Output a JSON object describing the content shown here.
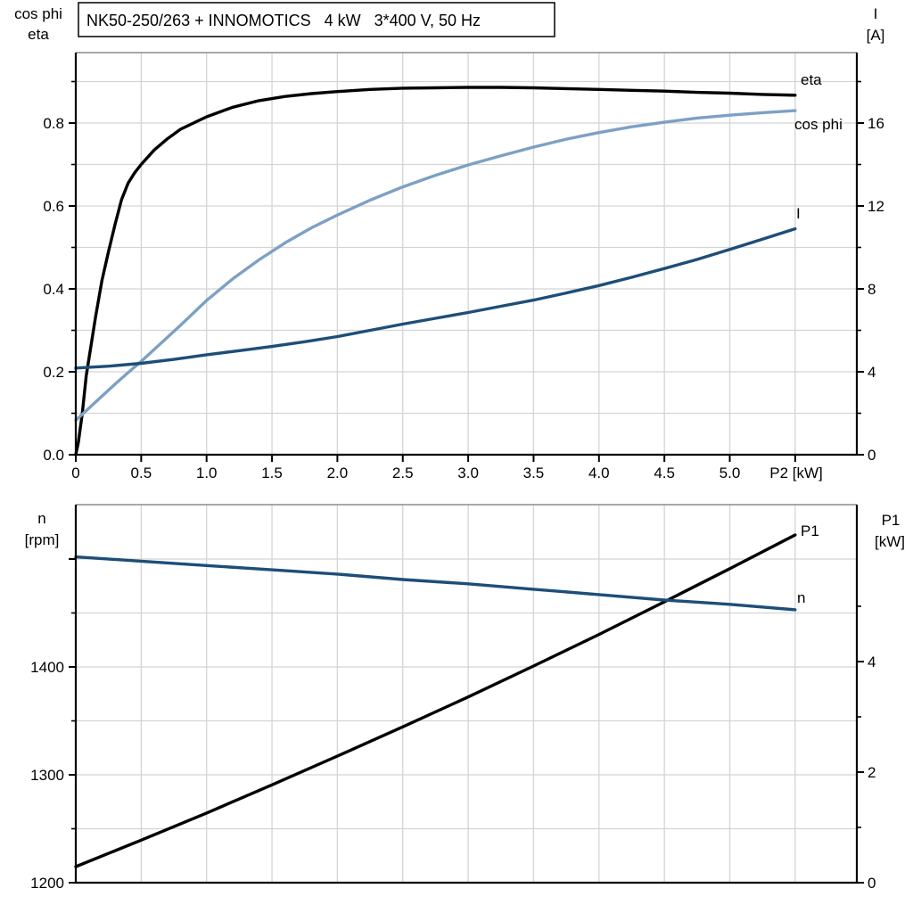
{
  "title_box": {
    "text": "NK50-250/263 + INNOMOTICS   4 kW   3*400 V, 50 Hz"
  },
  "colors": {
    "eta_curve": "#000000",
    "cos_phi_curve": "#7da0c4",
    "current_curve": "#1d4e78",
    "n_curve": "#1d4e78",
    "p1_curve": "#000000",
    "blue_label": "#2e6da4",
    "gridline": "#d4d4d4",
    "frame_top": "#8c8c8c",
    "axis": "#000000"
  },
  "chart_data": [
    {
      "type": "line",
      "position": "top",
      "title": "NK50-250/263 + INNOMOTICS   4 kW   3*400 V, 50 Hz",
      "x_axis": {
        "label": "P2 [kW]",
        "tick_values": [
          0,
          0.5,
          1.0,
          1.5,
          2.0,
          2.5,
          3.0,
          3.5,
          4.0,
          4.5,
          5.0
        ],
        "tick_labels": [
          "0",
          "0.5",
          "1.0",
          "1.5",
          "2.0",
          "2.5",
          "3.0",
          "3.5",
          "4.0",
          "4.5",
          "5.0"
        ],
        "extra_ticks": [
          5.5
        ],
        "grid_values": [
          0.5,
          1.0,
          1.5,
          2.0,
          2.5,
          3.0,
          3.5,
          4.0,
          4.5,
          5.0,
          5.5
        ],
        "range": [
          0,
          5.97
        ]
      },
      "left_axis": {
        "title_lines": [
          "cos phi",
          "eta"
        ],
        "tick_values": [
          0,
          0.2,
          0.4,
          0.6,
          0.8
        ],
        "tick_labels": [
          "0.0",
          "0.2",
          "0.4",
          "0.6",
          "0.8"
        ],
        "minor_ticks": [
          0.1,
          0.3,
          0.5,
          0.7,
          0.9
        ],
        "grid_values": [
          0.1,
          0.2,
          0.3,
          0.4,
          0.5,
          0.6,
          0.7,
          0.8,
          0.9
        ],
        "range": [
          0,
          0.97
        ]
      },
      "right_axis": {
        "title_lines": [
          "I",
          "[A]"
        ],
        "tick_values": [
          0,
          4,
          8,
          12,
          16
        ],
        "tick_labels": [
          "0",
          "4",
          "8",
          "12",
          "16"
        ],
        "minor_ticks": [
          2,
          6,
          10,
          14,
          18
        ],
        "range": [
          0,
          19.4
        ]
      },
      "series": [
        {
          "name": "eta",
          "label": "eta",
          "axis": "left",
          "color": "#000000",
          "label_color": "#000000",
          "x": [
            0,
            0.02,
            0.05,
            0.08,
            0.11,
            0.15,
            0.2,
            0.25,
            0.3,
            0.35,
            0.4,
            0.45,
            0.5,
            0.6,
            0.7,
            0.8,
            0.9,
            1.0,
            1.2,
            1.4,
            1.6,
            1.8,
            2.0,
            2.25,
            2.5,
            2.75,
            3.0,
            3.25,
            3.5,
            3.75,
            4.0,
            4.25,
            4.5,
            4.75,
            5.0,
            5.25,
            5.5
          ],
          "values": [
            0,
            0.03,
            0.1,
            0.19,
            0.25,
            0.33,
            0.42,
            0.49,
            0.555,
            0.615,
            0.655,
            0.68,
            0.7,
            0.735,
            0.762,
            0.785,
            0.8,
            0.815,
            0.838,
            0.854,
            0.864,
            0.871,
            0.876,
            0.881,
            0.884,
            0.885,
            0.886,
            0.886,
            0.885,
            0.883,
            0.881,
            0.879,
            0.877,
            0.874,
            0.872,
            0.869,
            0.867
          ]
        },
        {
          "name": "cos_phi",
          "label": "cos phi",
          "axis": "left",
          "color": "#7da0c4",
          "label_color": "#7da0c4",
          "x": [
            0,
            0.1,
            0.2,
            0.3,
            0.4,
            0.5,
            0.6,
            0.7,
            0.8,
            0.9,
            1.0,
            1.2,
            1.4,
            1.6,
            1.8,
            2.0,
            2.25,
            2.5,
            2.75,
            3.0,
            3.25,
            3.5,
            3.75,
            4.0,
            4.25,
            4.5,
            4.75,
            5.0,
            5.25,
            5.5
          ],
          "values": [
            0.083,
            0.112,
            0.141,
            0.17,
            0.198,
            0.225,
            0.254,
            0.283,
            0.312,
            0.342,
            0.372,
            0.424,
            0.47,
            0.511,
            0.547,
            0.578,
            0.614,
            0.646,
            0.674,
            0.699,
            0.721,
            0.742,
            0.761,
            0.777,
            0.791,
            0.802,
            0.812,
            0.819,
            0.825,
            0.83
          ]
        },
        {
          "name": "I",
          "label": "I",
          "axis": "right",
          "color": "#1d4e78",
          "label_color": "#2e6da4",
          "x": [
            0,
            0.25,
            0.5,
            0.75,
            1.0,
            1.25,
            1.5,
            1.75,
            2.0,
            2.25,
            2.5,
            2.75,
            3.0,
            3.25,
            3.5,
            3.75,
            4.0,
            4.25,
            4.5,
            4.75,
            5.0,
            5.25,
            5.5
          ],
          "values": [
            4.18,
            4.27,
            4.41,
            4.6,
            4.82,
            5.02,
            5.22,
            5.45,
            5.7,
            6.0,
            6.3,
            6.58,
            6.86,
            7.16,
            7.46,
            7.8,
            8.16,
            8.56,
            8.98,
            9.42,
            9.9,
            10.4,
            10.9
          ]
        }
      ]
    },
    {
      "type": "line",
      "position": "bottom",
      "x_axis": {
        "label": "",
        "tick_values": [],
        "tick_labels": [],
        "extra_ticks": [],
        "grid_values": [
          0.5,
          1.0,
          1.5,
          2.0,
          2.5,
          3.0,
          3.5,
          4.0,
          4.5,
          5.0,
          5.5
        ],
        "range": [
          0,
          5.97
        ]
      },
      "left_axis": {
        "title_lines": [
          "n",
          "[rpm]"
        ],
        "tick_values": [
          1200,
          1300,
          1400
        ],
        "tick_labels": [
          "1200",
          "1300",
          "1400"
        ],
        "extra_ticks": [
          1500
        ],
        "minor_ticks": [
          1250,
          1350,
          1450
        ],
        "grid_values": [
          1250,
          1300,
          1350,
          1400,
          1450,
          1500
        ],
        "range": [
          1200,
          1552
        ]
      },
      "right_axis": {
        "title_lines": [
          "P1",
          "[kW]"
        ],
        "tick_values": [
          0,
          2,
          4
        ],
        "tick_labels": [
          "0",
          "2",
          "4"
        ],
        "minor_ticks": [
          1,
          3,
          5
        ],
        "range": [
          0,
          6.84
        ]
      },
      "series": [
        {
          "name": "P1",
          "label": "P1",
          "axis": "right",
          "color": "#000000",
          "label_color": "#000000",
          "x": [
            0,
            0.5,
            1.0,
            1.5,
            2.0,
            2.5,
            3.0,
            3.5,
            4.0,
            4.5,
            5.0,
            5.5
          ],
          "values": [
            0.29,
            0.77,
            1.26,
            1.77,
            2.29,
            2.82,
            3.36,
            3.92,
            4.49,
            5.08,
            5.68,
            6.29
          ]
        },
        {
          "name": "n",
          "label": "n",
          "axis": "left",
          "color": "#1d4e78",
          "label_color": "#2e6da4",
          "x": [
            0,
            0.5,
            1.0,
            1.5,
            2.0,
            2.5,
            3.0,
            3.5,
            4.0,
            4.5,
            5.0,
            5.5
          ],
          "values": [
            1502,
            1498,
            1494,
            1490,
            1486,
            1481,
            1477,
            1472,
            1467,
            1462,
            1458,
            1453
          ]
        }
      ]
    }
  ]
}
